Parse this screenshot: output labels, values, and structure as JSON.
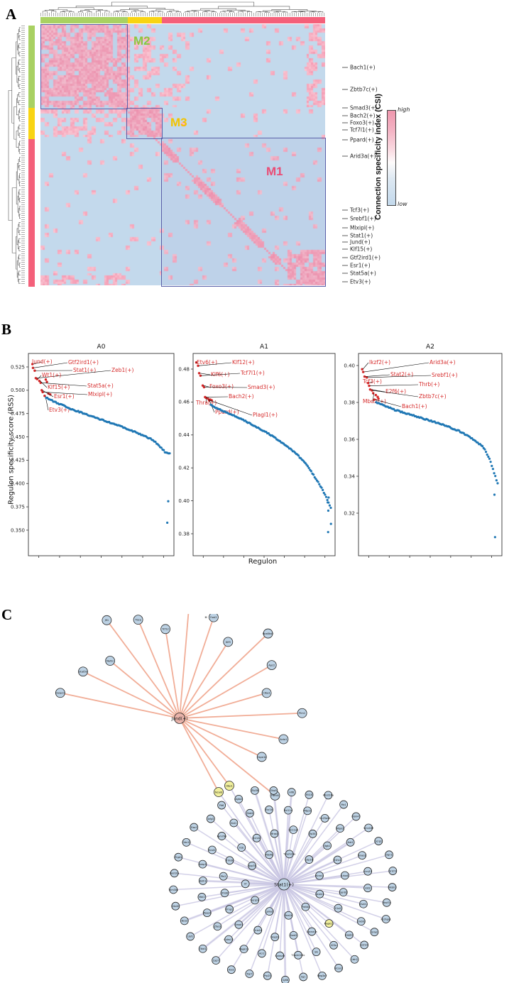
{
  "figure": {
    "panel_a_letter": "A",
    "panel_b_letter": "B",
    "panel_c_letter": "C"
  },
  "panelA": {
    "modules": [
      {
        "id": "M2",
        "label_color": "#8dc63f",
        "bar_color": "#a9d162"
      },
      {
        "id": "M3",
        "label_color": "#f3c300",
        "bar_color": "#f8d413"
      },
      {
        "id": "M1",
        "label_color": "#ea4c75",
        "bar_color": "#f4607a"
      }
    ],
    "right_labels": [
      "Bach1(+)",
      "Zbtb7c(+)",
      "Smad3(+)",
      "Bach2(+)",
      "Foxo3(+)",
      "Tcf7l1(+)",
      "Ppard(+)",
      "Arid3a(+)",
      "Tcf3(+)",
      "Srebf1(+)",
      "Mlxipl(+)",
      "Stat1(+)",
      "Jund(+)",
      "Klf15(+)",
      "Gtf2ird1(+)",
      "Esr1(+)",
      "Stat5a(+)",
      "Etv3(+)"
    ],
    "colorbar": {
      "title": "Connection specificity index (CSI)",
      "high": "high",
      "low": "low",
      "color_high": "#ef97ae",
      "color_low": "#c3d9ec"
    },
    "heat_colors": {
      "base_blue": "#c3d9ec",
      "pink_light": "#fbdce3",
      "pink_strong": "#f48ca8",
      "diag": "#f27f9d"
    }
  },
  "panelB": {
    "ylabel": "Regulon specificity score (RSS)",
    "xlabel": "Regulon",
    "dot_colors": {
      "red": "#d62728",
      "blue": "#1f77b4",
      "label_red": "#d62c2c"
    },
    "plots": [
      {
        "title": "A0",
        "yticks": [
          0.525,
          0.5,
          0.475,
          0.45,
          0.425,
          0.4,
          0.375,
          0.35
        ],
        "labels": [
          "Jund(+)",
          "Gtf2ird1(+)",
          "Stat1(+)",
          "Zeb1(+)",
          "Wt1(+)",
          "Klf15(+)",
          "Stat5a(+)",
          "Esr1(+)",
          "Mlxipl(+)",
          "Etv3(+)"
        ],
        "label_values": [
          0.528,
          0.524,
          0.521,
          0.513,
          0.512,
          0.51,
          0.508,
          0.5,
          0.498,
          0.494
        ],
        "extra_red": [
          0.5115,
          0.509,
          0.4965,
          0.4955
        ],
        "curve": [
          [
            0,
            0.492
          ],
          [
            0.08,
            0.487
          ],
          [
            0.2,
            0.48
          ],
          [
            0.35,
            0.473
          ],
          [
            0.5,
            0.466
          ],
          [
            0.65,
            0.459
          ],
          [
            0.78,
            0.452
          ],
          [
            0.86,
            0.447
          ],
          [
            0.92,
            0.44
          ],
          [
            0.96,
            0.434
          ],
          [
            1,
            0.432
          ]
        ],
        "outliers": [
          0.381,
          0.358
        ]
      },
      {
        "title": "A1",
        "yticks": [
          0.48,
          0.46,
          0.44,
          0.42,
          0.4,
          0.38
        ],
        "labels": [
          "Etv6(+)",
          "Klf12(+)",
          "Klf6(+)",
          "Tcf7l1(+)",
          "Foxo3(+)",
          "Smad3(+)",
          "Bach2(+)",
          "Thra(+)",
          "Ppard(+)",
          "Plagl1(+)"
        ],
        "label_values": [
          0.484,
          0.482,
          0.4775,
          0.476,
          0.47,
          0.469,
          0.463,
          0.4625,
          0.462,
          0.461
        ],
        "extra_red": [
          0.4615,
          0.461
        ],
        "curve": [
          [
            0,
            0.458
          ],
          [
            0.1,
            0.4545
          ],
          [
            0.25,
            0.45
          ],
          [
            0.4,
            0.444
          ],
          [
            0.5,
            0.44
          ],
          [
            0.62,
            0.434
          ],
          [
            0.72,
            0.428
          ],
          [
            0.8,
            0.422
          ],
          [
            0.87,
            0.414
          ],
          [
            0.93,
            0.407
          ],
          [
            1,
            0.396
          ]
        ],
        "outliers": [
          0.402,
          0.399,
          0.394,
          0.386,
          0.381
        ]
      },
      {
        "title": "A2",
        "yticks": [
          0.4,
          0.38,
          0.36,
          0.34,
          0.32
        ],
        "labels": [
          "Ikzf2(+)",
          "Arid3a(+)",
          "Stat2(+)",
          "Srebf1(+)",
          "Tcf3(+)",
          "Thrb(+)",
          "E2f6(+)",
          "Zbtb7c(+)",
          "Mbd2(+)",
          "Bach1(+)"
        ],
        "label_values": [
          0.398,
          0.3965,
          0.394,
          0.3935,
          0.3905,
          0.389,
          0.387,
          0.3865,
          0.385,
          0.3815
        ],
        "extra_red": [
          0.384,
          0.383,
          0.382
        ],
        "curve": [
          [
            0,
            0.38
          ],
          [
            0.15,
            0.376
          ],
          [
            0.35,
            0.372
          ],
          [
            0.55,
            0.368
          ],
          [
            0.7,
            0.364
          ],
          [
            0.8,
            0.36
          ],
          [
            0.88,
            0.356
          ],
          [
            0.93,
            0.35
          ],
          [
            0.97,
            0.342
          ],
          [
            1,
            0.336
          ]
        ],
        "outliers": [
          0.33,
          0.307
        ]
      }
    ]
  },
  "panelC": {
    "note": "\"",
    "hub1_label": "Jund(+)",
    "hub2_label": "Stat1(+)",
    "shared_yellow_nodes": [
      "Ncald",
      "Hbp1"
    ],
    "fan_labels": [
      "Dusp10",
      "Stat5b",
      "Mef2c",
      "Jfi1",
      "Tbce",
      "Tcf12",
      "Sp140",
      "Fosl2",
      "Klf9",
      "Rps6ka2",
      "Apc2",
      "Ctbp1",
      "Pim1",
      "Acta1",
      "Hspa1b",
      "Herc6"
    ],
    "ring_labels": [
      "Ncam1",
      "Prelid1",
      "Pam16",
      "Lama1",
      "Serp2a",
      "Il7",
      "Nup35",
      "Pde4b",
      "Tmem26a",
      "Usp18",
      "Kcna1",
      "Gpr82",
      "Il1a2",
      "Mapk11",
      "Cacna1a",
      "Sord2",
      "Ang31",
      "Gria1b",
      "Smad7",
      "Prnp1",
      "Ifnb6",
      "Pfn2",
      "Trim36",
      "Il1b",
      "Kcnd2",
      "Mras5",
      "Slc11a9",
      "Zfp341",
      "Itgb1",
      "Echs1",
      "Lrba4",
      "Idd3",
      "Kval1",
      "Oxtr8",
      "Gapb2",
      "Il23a",
      "Slk",
      "Tmem164c",
      "Samsn9",
      "Acr2",
      "Mapk15",
      "Colec12",
      "Zfas3",
      "Pexp4",
      "Mdr2",
      "Aldh1",
      "Adrp3",
      "Kcst2",
      "Fam78b",
      "Ikst1",
      "Stat4",
      "Esr1b",
      "Bcl11a",
      "Mtp22",
      "Slc25a20",
      "Mipk2",
      "Kdr2",
      "Arxes2",
      "Kcnj15",
      "Rbst7a",
      "Pcdhps1",
      "Gria2",
      "Sclnk1",
      "Ush2",
      "Kcsv2",
      "Meg3a7",
      "Ilg1",
      "Sytl8",
      "Prp25",
      "Tral7",
      "Asx2",
      "Cap7",
      "Ttkd1",
      "Upf1",
      "Bco3",
      "Dtx40",
      "Trim30a",
      "Rasl10a",
      "Prgd1",
      "Cldx12",
      "Elac1",
      "Izfg3",
      "Pit6",
      "Agta2",
      "Zfp36",
      "Gbp5",
      "Hlf8",
      "Rli18",
      "Abcd16a",
      "Mx1",
      "Rbm47",
      "Vmn189",
      "Scrg1",
      "Ogn1",
      "Qrich1",
      "Alkbh3"
    ],
    "edge_colors": {
      "fan": "#f0a58c",
      "ring": "#c9c6e3"
    },
    "node_fill": "#bdd2e4",
    "yellow_fill": "#f1f09d",
    "hub1_fill": "#e9b3aa"
  },
  "chart_data": [
    {
      "type": "heatmap",
      "title": "Connection specificity index (CSI)",
      "description": "Hierarchically clustered regulon-regulon CSI matrix (~134 regulons) with three modules outlined",
      "modules": [
        {
          "name": "M2",
          "color": "green"
        },
        {
          "name": "M3",
          "color": "yellow"
        },
        {
          "name": "M1",
          "color": "pink"
        }
      ],
      "scale": {
        "high": "high",
        "low": "low"
      },
      "annotated_regulons": [
        "Bach1(+)",
        "Zbtb7c(+)",
        "Smad3(+)",
        "Bach2(+)",
        "Foxo3(+)",
        "Tcf7l1(+)",
        "Ppard(+)",
        "Arid3a(+)",
        "Tcf3(+)",
        "Srebf1(+)",
        "Mlxipl(+)",
        "Stat1(+)",
        "Jund(+)",
        "Klf15(+)",
        "Gtf2ird1(+)",
        "Esr1(+)",
        "Stat5a(+)",
        "Etv3(+)"
      ]
    },
    {
      "type": "scatter",
      "title": "A0",
      "xlabel": "Regulon",
      "ylabel": "Regulon specificity score (RSS)",
      "ylim": [
        0.335,
        0.54
      ],
      "labeled_points": [
        {
          "label": "Jund(+)",
          "rss": 0.528
        },
        {
          "label": "Gtf2ird1(+)",
          "rss": 0.524
        },
        {
          "label": "Stat1(+)",
          "rss": 0.521
        },
        {
          "label": "Zeb1(+)",
          "rss": 0.513
        },
        {
          "label": "Wt1(+)",
          "rss": 0.512
        },
        {
          "label": "Klf15(+)",
          "rss": 0.51
        },
        {
          "label": "Stat5a(+)",
          "rss": 0.508
        },
        {
          "label": "Esr1(+)",
          "rss": 0.5
        },
        {
          "label": "Mlxipl(+)",
          "rss": 0.498
        },
        {
          "label": "Etv3(+)",
          "rss": 0.494
        }
      ],
      "curve_keypoints": [
        [
          0,
          0.492
        ],
        [
          0.5,
          0.466
        ],
        [
          1,
          0.432
        ]
      ],
      "outliers": [
        0.381,
        0.358
      ]
    },
    {
      "type": "scatter",
      "title": "A1",
      "xlabel": "Regulon",
      "ylabel": "Regulon specificity score (RSS)",
      "ylim": [
        0.372,
        0.49
      ],
      "labeled_points": [
        {
          "label": "Etv6(+)",
          "rss": 0.484
        },
        {
          "label": "Klf12(+)",
          "rss": 0.482
        },
        {
          "label": "Klf6(+)",
          "rss": 0.4775
        },
        {
          "label": "Tcf7l1(+)",
          "rss": 0.476
        },
        {
          "label": "Foxo3(+)",
          "rss": 0.47
        },
        {
          "label": "Smad3(+)",
          "rss": 0.469
        },
        {
          "label": "Bach2(+)",
          "rss": 0.463
        },
        {
          "label": "Thra(+)",
          "rss": 0.4625
        },
        {
          "label": "Ppard(+)",
          "rss": 0.462
        },
        {
          "label": "Plagl1(+)",
          "rss": 0.461
        }
      ],
      "curve_keypoints": [
        [
          0,
          0.458
        ],
        [
          0.5,
          0.44
        ],
        [
          1,
          0.396
        ]
      ],
      "outliers": [
        0.402,
        0.399,
        0.394,
        0.386,
        0.381
      ]
    },
    {
      "type": "scatter",
      "title": "A2",
      "xlabel": "Regulon",
      "ylabel": "Regulon specificity score (RSS)",
      "ylim": [
        0.297,
        0.407
      ],
      "labeled_points": [
        {
          "label": "Ikzf2(+)",
          "rss": 0.398
        },
        {
          "label": "Arid3a(+)",
          "rss": 0.3965
        },
        {
          "label": "Stat2(+)",
          "rss": 0.394
        },
        {
          "label": "Srebf1(+)",
          "rss": 0.3935
        },
        {
          "label": "Tcf3(+)",
          "rss": 0.3905
        },
        {
          "label": "Thrb(+)",
          "rss": 0.389
        },
        {
          "label": "E2f6(+)",
          "rss": 0.387
        },
        {
          "label": "Zbtb7c(+)",
          "rss": 0.3865
        },
        {
          "label": "Mbd2(+)",
          "rss": 0.385
        },
        {
          "label": "Bach1(+)",
          "rss": 0.3815
        }
      ],
      "curve_keypoints": [
        [
          0,
          0.38
        ],
        [
          0.55,
          0.368
        ],
        [
          1,
          0.336
        ]
      ],
      "outliers": [
        0.33,
        0.307
      ]
    },
    {
      "type": "network",
      "description": "Two hub-and-spoke regulon target networks; Jund(+) fan hub (16 targets, salmon edges) connected via shared yellow target genes to a large Stat1(+) radial hub (~96 targets, lavender edges)",
      "hubs": [
        "Jund(+)",
        "Stat1(+)"
      ],
      "shared_nodes": [
        "Ncald",
        "Hbp1"
      ]
    }
  ]
}
